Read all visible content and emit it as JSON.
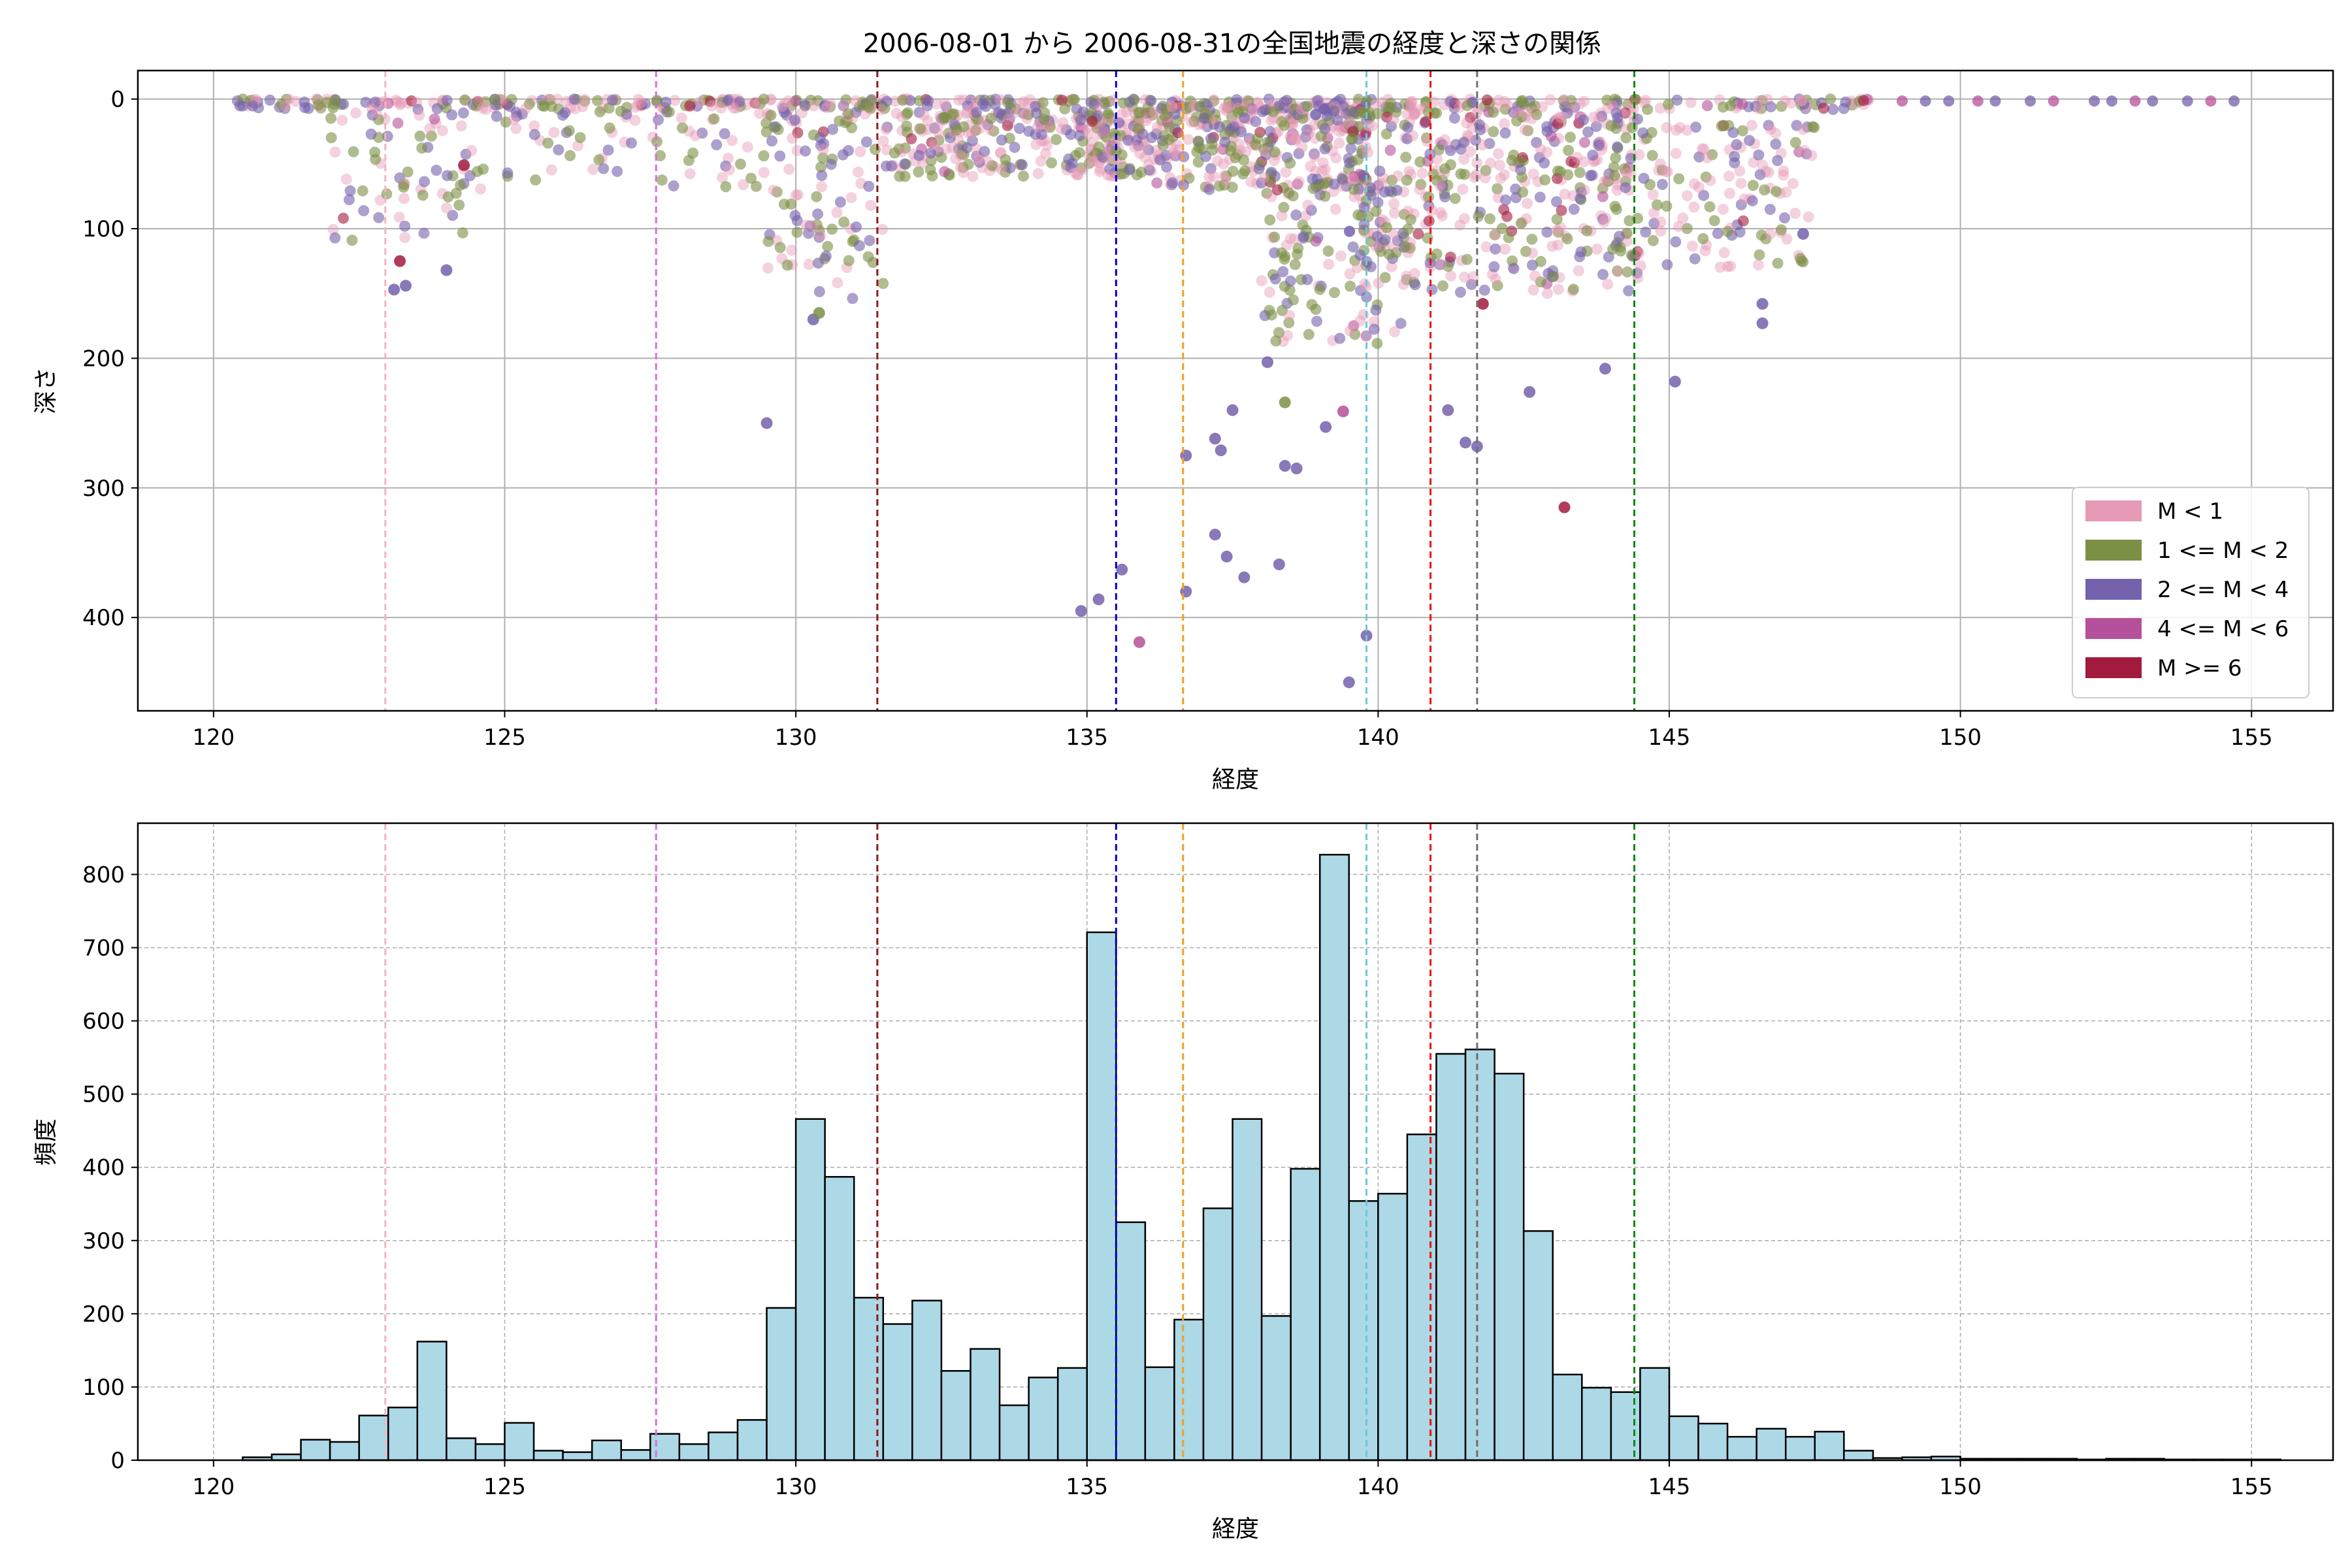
{
  "figure_title": "2006-08-01 から 2006-08-31の全国地震の経度と深さの関係",
  "chart_data": [
    {
      "type": "scatter",
      "title": "2006-08-01 から 2006-08-31の全国地震の経度と深さの関係",
      "xlabel": "経度",
      "ylabel": "深さ",
      "xlim": [
        118.7,
        156.4
      ],
      "ylim": [
        472,
        -22
      ],
      "y_inverted": true,
      "x_ticks": [
        120,
        125,
        130,
        135,
        140,
        145,
        150,
        155
      ],
      "y_ticks": [
        0,
        100,
        200,
        300,
        400
      ],
      "grid": true,
      "legend_position": "lower-right",
      "legend": [
        {
          "label": "M < 1",
          "color": "#e69ab5"
        },
        {
          "label": "1 <= M < 2",
          "color": "#7b8f45"
        },
        {
          "label": "2 <= M < 4",
          "color": "#7461ab"
        },
        {
          "label": "4 <= M < 6",
          "color": "#b5509a"
        },
        {
          "label": "M >= 6",
          "color": "#a21a3e"
        }
      ],
      "vertical_lines": [
        {
          "x": 122.95,
          "color": "#f4b4c0"
        },
        {
          "x": 127.6,
          "color": "#da70d6"
        },
        {
          "x": 131.4,
          "color": "#8b1a1a"
        },
        {
          "x": 135.5,
          "color": "#0000cc"
        },
        {
          "x": 136.65,
          "color": "#f0a020"
        },
        {
          "x": 139.8,
          "color": "#6cc8d8"
        },
        {
          "x": 140.9,
          "color": "#ee1111"
        },
        {
          "x": 141.7,
          "color": "#707070"
        },
        {
          "x": 144.4,
          "color": "#118811"
        }
      ],
      "notable_points": [
        {
          "x": 129.5,
          "y": 250,
          "class": "2 <= M < 4"
        },
        {
          "x": 134.9,
          "y": 395,
          "class": "2 <= M < 4"
        },
        {
          "x": 135.2,
          "y": 386,
          "class": "2 <= M < 4"
        },
        {
          "x": 135.6,
          "y": 363,
          "class": "2 <= M < 4"
        },
        {
          "x": 135.9,
          "y": 419,
          "class": "4 <= M < 6"
        },
        {
          "x": 136.7,
          "y": 380,
          "class": "2 <= M < 4"
        },
        {
          "x": 137.2,
          "y": 336,
          "class": "2 <= M < 4"
        },
        {
          "x": 137.4,
          "y": 353,
          "class": "2 <= M < 4"
        },
        {
          "x": 137.7,
          "y": 369,
          "class": "2 <= M < 4"
        },
        {
          "x": 138.3,
          "y": 359,
          "class": "2 <= M < 4"
        },
        {
          "x": 139.5,
          "y": 450,
          "class": "2 <= M < 4"
        },
        {
          "x": 139.8,
          "y": 414,
          "class": "2 <= M < 4"
        },
        {
          "x": 139.4,
          "y": 241,
          "class": "4 <= M < 6"
        },
        {
          "x": 143.2,
          "y": 315,
          "class": "M >= 6"
        },
        {
          "x": 141.8,
          "y": 158,
          "class": "M >= 6"
        },
        {
          "x": 123.3,
          "y": 144,
          "class": "2 <= M < 4"
        },
        {
          "x": 123.1,
          "y": 147,
          "class": "2 <= M < 4"
        },
        {
          "x": 124.0,
          "y": 132,
          "class": "2 <= M < 4"
        },
        {
          "x": 124.3,
          "y": 51,
          "class": "M >= 6"
        },
        {
          "x": 123.2,
          "y": 125,
          "class": "M >= 6"
        },
        {
          "x": 146.6,
          "y": 173,
          "class": "2 <= M < 4"
        },
        {
          "x": 146.6,
          "y": 158,
          "class": "2 <= M < 4"
        },
        {
          "x": 147.3,
          "y": 104,
          "class": "2 <= M < 4"
        },
        {
          "x": 138.1,
          "y": 203,
          "class": "2 <= M < 4"
        },
        {
          "x": 138.4,
          "y": 234,
          "class": "1 <= M < 2"
        },
        {
          "x": 137.5,
          "y": 240,
          "class": "2 <= M < 4"
        },
        {
          "x": 136.7,
          "y": 275,
          "class": "2 <= M < 4"
        },
        {
          "x": 137.2,
          "y": 262,
          "class": "2 <= M < 4"
        },
        {
          "x": 137.3,
          "y": 271,
          "class": "2 <= M < 4"
        },
        {
          "x": 138.4,
          "y": 283,
          "class": "2 <= M < 4"
        },
        {
          "x": 138.6,
          "y": 285,
          "class": "2 <= M < 4"
        },
        {
          "x": 139.1,
          "y": 253,
          "class": "2 <= M < 4"
        },
        {
          "x": 141.2,
          "y": 240,
          "class": "2 <= M < 4"
        },
        {
          "x": 141.5,
          "y": 265,
          "class": "2 <= M < 4"
        },
        {
          "x": 141.7,
          "y": 268,
          "class": "2 <= M < 4"
        },
        {
          "x": 142.6,
          "y": 226,
          "class": "2 <= M < 4"
        },
        {
          "x": 143.9,
          "y": 208,
          "class": "2 <= M < 4"
        },
        {
          "x": 145.1,
          "y": 218,
          "class": "2 <= M < 4"
        },
        {
          "x": 130.3,
          "y": 170,
          "class": "2 <= M < 4"
        },
        {
          "x": 130.4,
          "y": 165,
          "class": "1 <= M < 2"
        }
      ]
    },
    {
      "type": "bar",
      "title": "",
      "xlabel": "経度",
      "ylabel": "頻度",
      "xlim": [
        118.7,
        156.4
      ],
      "ylim": [
        0,
        870
      ],
      "x_ticks": [
        120,
        125,
        130,
        135,
        140,
        145,
        150,
        155
      ],
      "y_ticks": [
        0,
        100,
        200,
        300,
        400,
        500,
        600,
        700,
        800
      ],
      "grid": true,
      "bar_color": "#add8e6",
      "bin_start": 120.5,
      "bin_width": 0.5,
      "values": [
        4,
        8,
        28,
        25,
        61,
        72,
        162,
        30,
        22,
        51,
        13,
        11,
        27,
        14,
        36,
        22,
        38,
        55,
        208,
        466,
        387,
        222,
        186,
        218,
        122,
        152,
        75,
        113,
        126,
        721,
        325,
        127,
        192,
        344,
        466,
        197,
        398,
        827,
        354,
        364,
        445,
        555,
        561,
        528,
        313,
        117,
        99,
        93,
        126,
        60,
        50,
        32,
        43,
        32,
        39,
        13,
        3,
        4,
        5,
        2,
        2,
        2,
        2,
        1,
        2,
        2,
        1,
        1,
        1,
        1
      ],
      "vertical_lines": [
        {
          "x": 122.95,
          "color": "#f4b4c0"
        },
        {
          "x": 127.6,
          "color": "#da70d6"
        },
        {
          "x": 131.4,
          "color": "#8b1a1a"
        },
        {
          "x": 135.5,
          "color": "#0000cc"
        },
        {
          "x": 136.65,
          "color": "#f0a020"
        },
        {
          "x": 139.8,
          "color": "#6cc8d8"
        },
        {
          "x": 140.9,
          "color": "#ee1111"
        },
        {
          "x": 141.7,
          "color": "#707070"
        },
        {
          "x": 144.4,
          "color": "#118811"
        }
      ]
    }
  ]
}
